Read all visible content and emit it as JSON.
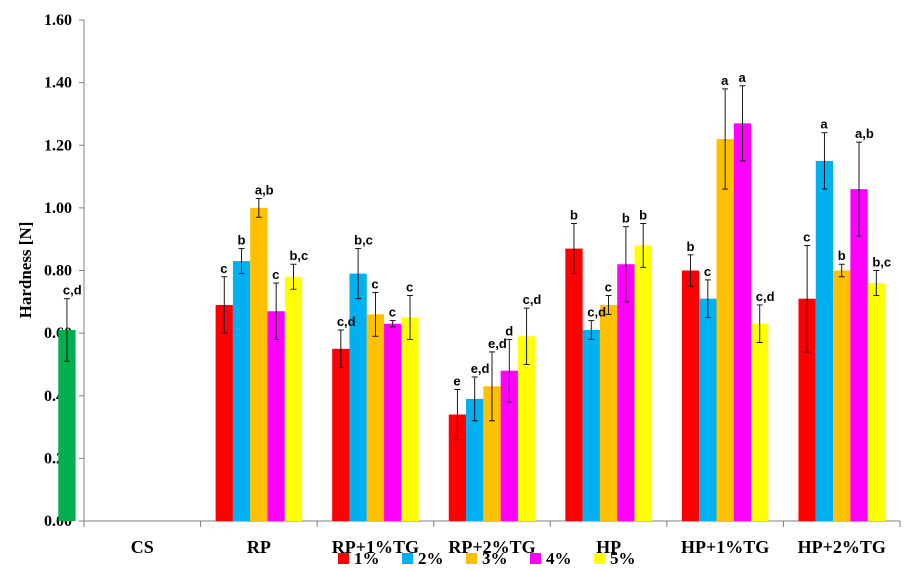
{
  "chart_data": {
    "type": "bar",
    "ylabel": "Hardness [N]",
    "ylim": [
      0,
      1.6
    ],
    "yticks": [
      "0.00",
      "0.20",
      "0.40",
      "0.60",
      "0.80",
      "1.00",
      "1.20",
      "1.40",
      "1.60"
    ],
    "grid": false,
    "legend_position": "bottom",
    "categories": [
      "CS",
      "RP",
      "RP+1%TG",
      "RP+2%TG",
      "HP",
      "HP+1%TG",
      "HP+2%TG"
    ],
    "control": {
      "category": "CS",
      "value": 0.61,
      "error": 0.1,
      "label": "c,d",
      "color": "#00b050"
    },
    "series": [
      {
        "name": "1%",
        "color": "#ff0000",
        "values": [
          null,
          0.69,
          0.55,
          0.34,
          0.87,
          0.8,
          0.71
        ],
        "errors": [
          null,
          0.09,
          0.06,
          0.08,
          0.08,
          0.05,
          0.17
        ],
        "labels": [
          null,
          "c",
          "c,d",
          "e",
          "b",
          "b",
          "c"
        ]
      },
      {
        "name": "2%",
        "color": "#00b0f0",
        "values": [
          null,
          0.83,
          0.79,
          0.39,
          0.61,
          0.71,
          1.15
        ],
        "errors": [
          null,
          0.04,
          0.08,
          0.07,
          0.03,
          0.06,
          0.09
        ],
        "labels": [
          null,
          "b",
          "b,c",
          "e,d",
          "c,d",
          "c",
          "a"
        ]
      },
      {
        "name": "3%",
        "color": "#ffc000",
        "values": [
          null,
          1.0,
          0.66,
          0.43,
          0.69,
          1.22,
          0.8
        ],
        "errors": [
          null,
          0.03,
          0.07,
          0.11,
          0.03,
          0.16,
          0.02
        ],
        "labels": [
          null,
          "a,b",
          "c",
          "e,d",
          "c",
          "a",
          "b"
        ]
      },
      {
        "name": "4%",
        "color": "#ff00ff",
        "values": [
          null,
          0.67,
          0.63,
          0.48,
          0.82,
          1.27,
          1.06
        ],
        "errors": [
          null,
          0.09,
          0.01,
          0.1,
          0.12,
          0.12,
          0.15
        ],
        "labels": [
          null,
          "c",
          "c",
          "d",
          "b",
          "a",
          "a,b"
        ]
      },
      {
        "name": "5%",
        "color": "#ffff00",
        "values": [
          null,
          0.78,
          0.65,
          0.59,
          0.88,
          0.63,
          0.76
        ],
        "errors": [
          null,
          0.04,
          0.07,
          0.09,
          0.07,
          0.06,
          0.04
        ],
        "labels": [
          null,
          "b,c",
          "c",
          "c,d",
          "b",
          "c,d",
          "b,c"
        ]
      }
    ]
  }
}
